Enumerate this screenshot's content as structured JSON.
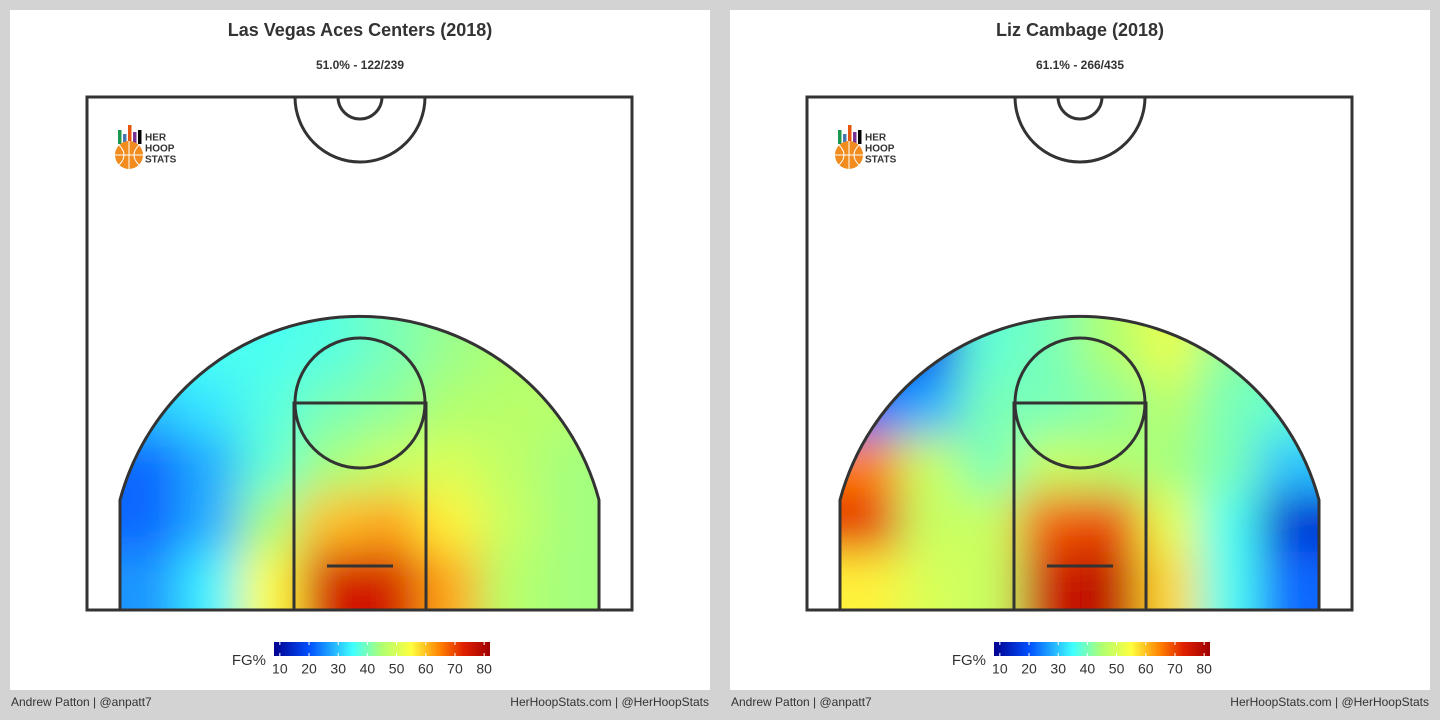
{
  "chart_data": [
    {
      "type": "heatmap",
      "title": "Las Vegas Aces Centers (2018)",
      "subtitle": "51.0% - 122/239",
      "colorbar_label": "FG%",
      "clim": [
        8,
        82
      ],
      "cticks": [
        10,
        20,
        30,
        40,
        50,
        60,
        70,
        80
      ],
      "colorscale": [
        [
          8,
          "#00008f"
        ],
        [
          20,
          "#0050ff"
        ],
        [
          35,
          "#40ffff"
        ],
        [
          45,
          "#b0ff70"
        ],
        [
          55,
          "#ffff40"
        ],
        [
          65,
          "#ff8000"
        ],
        [
          73,
          "#e02000"
        ],
        [
          82,
          "#a00000"
        ]
      ],
      "values": [
        [
          35,
          36,
          36,
          37,
          40,
          43,
          45,
          45
        ],
        [
          30,
          33,
          37,
          40,
          42,
          45,
          46,
          46
        ],
        [
          22,
          28,
          38,
          44,
          48,
          50,
          47,
          44
        ],
        [
          22,
          28,
          44,
          60,
          62,
          56,
          48,
          44
        ],
        [
          26,
          34,
          55,
          75,
          75,
          62,
          46,
          44
        ]
      ],
      "logo": [
        "HER",
        "HOOP",
        "STATS"
      ],
      "credit_left": "Andrew Patton | @anpatt7",
      "credit_right": "HerHoopStats.com | @HerHoopStats"
    },
    {
      "type": "heatmap",
      "title": "Liz Cambage (2018)",
      "subtitle": "61.1% - 266/435",
      "colorbar_label": "FG%",
      "clim": [
        8,
        82
      ],
      "cticks": [
        10,
        20,
        30,
        40,
        50,
        60,
        70,
        80
      ],
      "colorscale": [
        [
          8,
          "#00008f"
        ],
        [
          20,
          "#0050ff"
        ],
        [
          35,
          "#40ffff"
        ],
        [
          45,
          "#b0ff70"
        ],
        [
          55,
          "#ffff40"
        ],
        [
          65,
          "#ff8000"
        ],
        [
          73,
          "#e02000"
        ],
        [
          82,
          "#a00000"
        ]
      ],
      "values": [
        [
          20,
          18,
          38,
          40,
          45,
          52,
          42,
          40
        ],
        [
          22,
          28,
          40,
          40,
          42,
          46,
          40,
          38
        ],
        [
          65,
          48,
          40,
          48,
          46,
          44,
          40,
          30
        ],
        [
          72,
          48,
          48,
          68,
          70,
          52,
          36,
          15
        ],
        [
          56,
          50,
          48,
          76,
          78,
          58,
          36,
          22
        ]
      ],
      "logo": [
        "HER",
        "HOOP",
        "STATS"
      ],
      "credit_left": "Andrew Patton | @anpatt7",
      "credit_right": "HerHoopStats.com | @HerHoopStats"
    }
  ]
}
